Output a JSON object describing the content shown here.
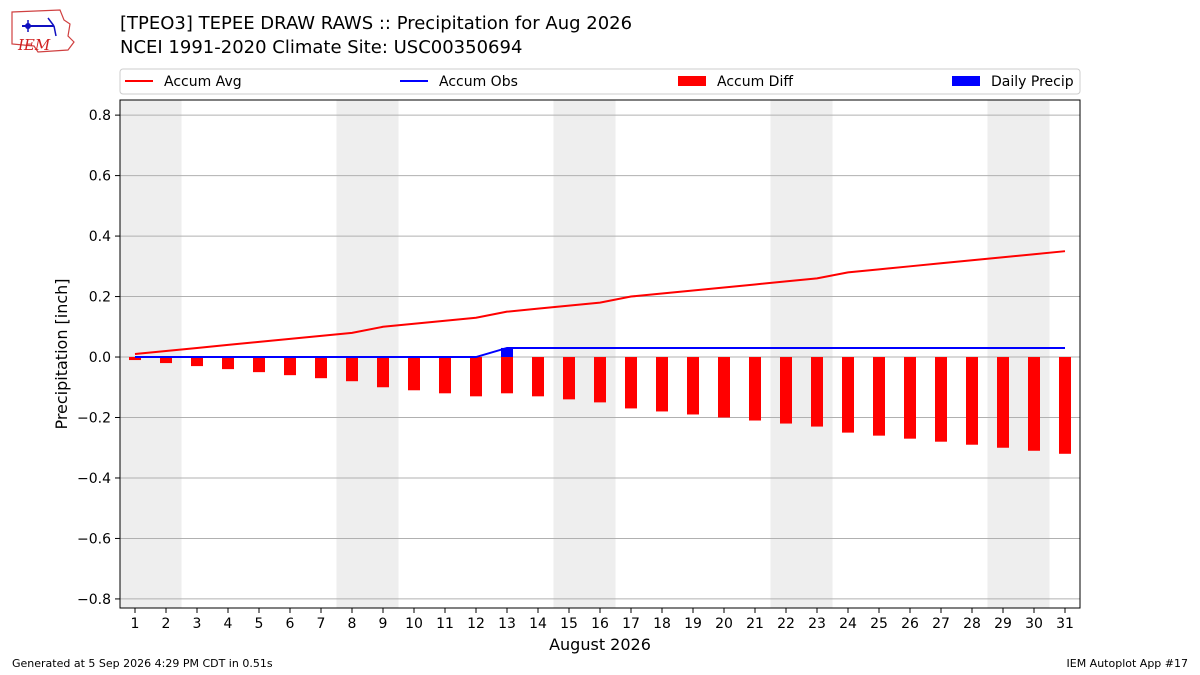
{
  "header": {
    "title": "[TPEO3] TEPEE DRAW RAWS :: Precipitation for Aug 2026",
    "subtitle": "NCEI 1991-2020 Climate Site: USC00350694",
    "logo_text": "IEM"
  },
  "footer": {
    "generated": "Generated at 5 Sep 2026 4:29 PM CDT in 0.51s",
    "app": "IEM Autoplot App #17"
  },
  "colors": {
    "accum_avg": "#ff0000",
    "accum_obs": "#0000ff",
    "accum_diff": "#ff0000",
    "daily_precip": "#0000ff",
    "weekend_shade": "#eeeeee",
    "grid": "#b0b0b0"
  },
  "chart_data": {
    "type": "bar",
    "xlabel": "August 2026",
    "ylabel": "Precipitation [inch]",
    "ylim": [
      -0.83,
      0.85
    ],
    "yticks": [
      -0.8,
      -0.6,
      -0.4,
      -0.2,
      0.0,
      0.2,
      0.4,
      0.6,
      0.8
    ],
    "ytick_labels": [
      "−0.8",
      "−0.6",
      "−0.4",
      "−0.2",
      "0.0",
      "0.2",
      "0.4",
      "0.6",
      "0.8"
    ],
    "x": [
      1,
      2,
      3,
      4,
      5,
      6,
      7,
      8,
      9,
      10,
      11,
      12,
      13,
      14,
      15,
      16,
      17,
      18,
      19,
      20,
      21,
      22,
      23,
      24,
      25,
      26,
      27,
      28,
      29,
      30,
      31
    ],
    "shaded_days": [
      [
        1,
        2
      ],
      [
        8,
        9
      ],
      [
        15,
        16
      ],
      [
        22,
        23
      ],
      [
        29,
        30
      ]
    ],
    "grid": "horizontal",
    "legend_position": "top",
    "legend": [
      "Accum Avg",
      "Accum Obs",
      "Accum Diff",
      "Daily Precip"
    ],
    "series": [
      {
        "name": "Accum Avg",
        "kind": "line",
        "values": [
          0.01,
          0.02,
          0.03,
          0.04,
          0.05,
          0.06,
          0.07,
          0.08,
          0.1,
          0.11,
          0.12,
          0.13,
          0.15,
          0.16,
          0.17,
          0.18,
          0.2,
          0.21,
          0.22,
          0.23,
          0.24,
          0.25,
          0.26,
          0.28,
          0.29,
          0.3,
          0.31,
          0.32,
          0.33,
          0.34,
          0.35
        ]
      },
      {
        "name": "Accum Obs",
        "kind": "line",
        "values": [
          0,
          0,
          0,
          0,
          0,
          0,
          0,
          0,
          0,
          0,
          0,
          0,
          0.03,
          0.03,
          0.03,
          0.03,
          0.03,
          0.03,
          0.03,
          0.03,
          0.03,
          0.03,
          0.03,
          0.03,
          0.03,
          0.03,
          0.03,
          0.03,
          0.03,
          0.03,
          0.03
        ]
      },
      {
        "name": "Accum Diff",
        "kind": "bar",
        "values": [
          -0.01,
          -0.02,
          -0.03,
          -0.04,
          -0.05,
          -0.06,
          -0.07,
          -0.08,
          -0.1,
          -0.11,
          -0.12,
          -0.13,
          -0.12,
          -0.13,
          -0.14,
          -0.15,
          -0.17,
          -0.18,
          -0.19,
          -0.2,
          -0.21,
          -0.22,
          -0.23,
          -0.25,
          -0.26,
          -0.27,
          -0.28,
          -0.29,
          -0.3,
          -0.31,
          -0.32
        ]
      },
      {
        "name": "Daily Precip",
        "kind": "bar",
        "values": [
          0,
          0,
          0,
          0,
          0,
          0,
          0,
          0,
          0,
          0,
          0,
          0,
          0.03,
          0,
          0,
          0,
          0,
          0,
          0,
          0,
          0,
          0,
          0,
          0,
          0,
          0,
          0,
          0,
          0,
          0,
          0
        ]
      }
    ]
  }
}
